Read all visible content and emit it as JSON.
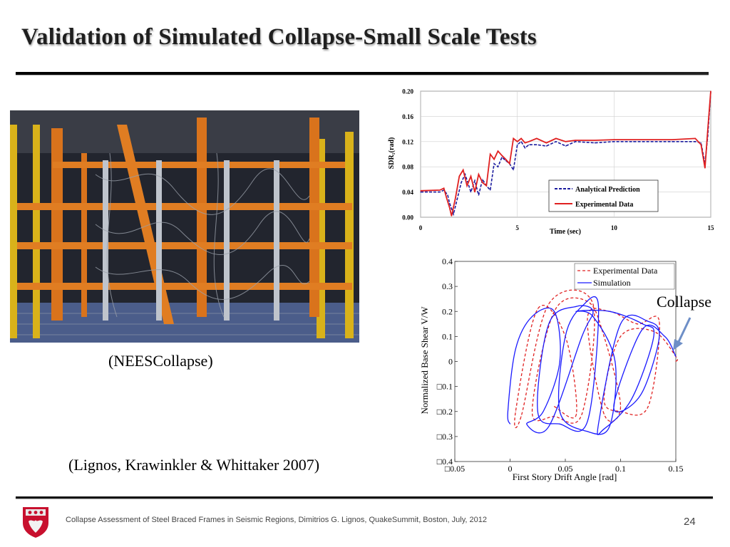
{
  "slide": {
    "title": "Validation of Simulated Collapse-Small Scale Tests",
    "photo_caption": "(NEESCollapse)",
    "citation": "(Lignos, Krawinkler & Whittaker 2007)",
    "annotation": "Collapse",
    "footer": "Collapse Assessment of Steel Braced Frames in Seismic Regions, Dimitrios G. Lignos, QuakeSummit, Boston, July, 2012",
    "page_number": "24"
  },
  "icons": {
    "photo": "test-frame-photo",
    "crest": "university-crest-icon",
    "arrow": "arrow-icon"
  },
  "colors": {
    "experimental": "#e02020",
    "analytical": "#1a1a9e",
    "simulation": "#1a1aff",
    "collapse_arrow": "#6e8fc7"
  },
  "chart_data": [
    {
      "type": "line",
      "title": "",
      "xlabel": "Time (sec)",
      "ylabel": "SDR₁(rad)",
      "xlim": [
        0,
        15
      ],
      "ylim": [
        0,
        0.2
      ],
      "xticks": [
        "0",
        "5",
        "10",
        "15"
      ],
      "yticks": [
        "0.00",
        "0.04",
        "0.08",
        "0.12",
        "0.16",
        "0.20"
      ],
      "legend_position": "bottom-right",
      "series": [
        {
          "name": "Analytical Prediction",
          "style": "dashed",
          "color": "#1a1a9e",
          "x": [
            0,
            1,
            1.2,
            1.4,
            1.5,
            1.7,
            1.9,
            2.1,
            2.3,
            2.6,
            2.8,
            3.0,
            3.2,
            3.4,
            3.6,
            3.8,
            4.0,
            4.2,
            4.4,
            4.6,
            4.8,
            5.0,
            5.2,
            5.4,
            5.6,
            6.0,
            6.5,
            7.0,
            7.5,
            8.0,
            9.0,
            10,
            11,
            12,
            13,
            14.2,
            14.5,
            14.7,
            14.85,
            15
          ],
          "y": [
            0.04,
            0.04,
            0.043,
            0.035,
            0.022,
            0.005,
            0.03,
            0.055,
            0.068,
            0.04,
            0.058,
            0.035,
            0.06,
            0.05,
            0.043,
            0.085,
            0.08,
            0.095,
            0.09,
            0.085,
            0.075,
            0.115,
            0.12,
            0.11,
            0.115,
            0.115,
            0.113,
            0.12,
            0.113,
            0.12,
            0.118,
            0.12,
            0.12,
            0.12,
            0.12,
            0.12,
            0.118,
            0.085,
            0.13,
            0.2
          ]
        },
        {
          "name": "Experimental Data",
          "style": "solid",
          "color": "#e02020",
          "x": [
            0,
            1,
            1.2,
            1.35,
            1.5,
            1.6,
            1.8,
            2.0,
            2.2,
            2.4,
            2.6,
            2.8,
            3.0,
            3.2,
            3.4,
            3.6,
            3.8,
            4.0,
            4.2,
            4.4,
            4.6,
            4.8,
            5.0,
            5.2,
            5.4,
            5.6,
            6.0,
            6.5,
            7.0,
            7.5,
            8.0,
            9.0,
            10,
            11,
            12,
            13,
            14.2,
            14.5,
            14.7,
            14.85,
            15
          ],
          "y": [
            0.042,
            0.043,
            0.046,
            0.03,
            0.015,
            0.002,
            0.03,
            0.065,
            0.075,
            0.05,
            0.065,
            0.04,
            0.068,
            0.055,
            0.05,
            0.1,
            0.092,
            0.105,
            0.098,
            0.092,
            0.085,
            0.125,
            0.12,
            0.125,
            0.118,
            0.12,
            0.125,
            0.118,
            0.125,
            0.12,
            0.122,
            0.122,
            0.123,
            0.123,
            0.123,
            0.123,
            0.125,
            0.115,
            0.078,
            0.14,
            0.2
          ]
        }
      ]
    },
    {
      "type": "line",
      "title": "",
      "xlabel": "First Story Drift Angle [rad]",
      "ylabel": "Normalized Base Shear V/W",
      "xlim": [
        -0.05,
        0.15
      ],
      "ylim": [
        -0.4,
        0.4
      ],
      "xticks": [
        "□0.05",
        "0",
        "0.05",
        "0.1",
        "0.15"
      ],
      "yticks": [
        "0.4",
        "0.3",
        "0.2",
        "0.1",
        "0",
        "□0.1",
        "□0.2",
        "□0.3",
        "□0.4"
      ],
      "legend_position": "top-right",
      "series": [
        {
          "name": "Experimental Data",
          "style": "dashed",
          "color": "#e02020",
          "x": [
            0.04,
            0.06,
            0.05,
            0.025,
            0.005,
            0.01,
            0.035,
            0.075,
            0.065,
            0.04,
            0.02,
            0.04,
            0.07,
            0.085,
            0.1,
            0.085,
            0.07,
            0.09,
            0.115,
            0.135,
            0.125,
            0.1,
            0.085,
            0.1,
            0.13,
            0.15,
            0.15
          ],
          "y": [
            -0.18,
            -0.21,
            0.1,
            0.21,
            -0.2,
            -0.22,
            0.23,
            0.23,
            -0.21,
            -0.22,
            -0.2,
            0.2,
            0.24,
            0.1,
            -0.18,
            -0.21,
            0.17,
            0.2,
            0.15,
            0.16,
            -0.18,
            -0.2,
            -0.15,
            0.1,
            0.12,
            0.02,
            0.0
          ]
        },
        {
          "name": "Simulation",
          "style": "solid",
          "color": "#1a1aff",
          "x": [
            0.0,
            -0.002,
            0.005,
            0.02,
            0.04,
            0.045,
            0.03,
            0.015,
            0.035,
            0.065,
            0.075,
            0.06,
            0.035,
            0.025,
            0.045,
            0.07,
            0.08,
            0.065,
            0.05,
            0.045,
            0.07,
            0.09,
            0.095,
            0.075,
            0.06,
            0.09,
            0.12,
            0.13,
            0.11,
            0.085,
            0.08,
            0.1,
            0.125,
            0.135,
            0.12,
            0.1,
            0.095,
            0.12,
            0.14,
            0.15
          ],
          "y": [
            -0.25,
            -0.2,
            0.05,
            0.18,
            0.2,
            0.0,
            -0.2,
            -0.25,
            -0.26,
            0.1,
            0.2,
            0.22,
            0.15,
            -0.2,
            -0.25,
            -0.24,
            0.22,
            0.22,
            0.1,
            -0.2,
            -0.28,
            -0.26,
            0.0,
            0.18,
            0.2,
            0.2,
            0.15,
            0.1,
            -0.15,
            -0.27,
            -0.25,
            0.15,
            0.16,
            0.1,
            -0.12,
            -0.2,
            -0.15,
            0.13,
            0.1,
            0.02
          ]
        }
      ]
    }
  ]
}
